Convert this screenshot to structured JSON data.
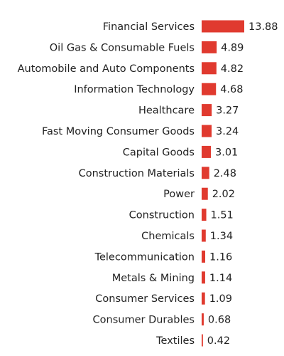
{
  "colors": {
    "bar": "#e03a2f",
    "text": "#222222",
    "background": "#ffffff"
  },
  "chart_data": {
    "type": "bar",
    "orientation": "horizontal",
    "title": "",
    "xlabel": "",
    "ylabel": "",
    "grid": false,
    "legend": "none",
    "xlim": [
      0,
      13.88
    ],
    "categories": [
      "Financial Services",
      "Oil Gas & Consumable Fuels",
      "Automobile and Auto Components",
      "Information Technology",
      "Healthcare",
      "Fast Moving Consumer Goods",
      "Capital Goods",
      "Construction Materials",
      "Power",
      "Construction",
      "Chemicals",
      "Telecommunication",
      "Metals & Mining",
      "Consumer Services",
      "Consumer Durables",
      "Textiles"
    ],
    "values": [
      13.88,
      4.89,
      4.82,
      4.68,
      3.27,
      3.24,
      3.01,
      2.48,
      2.02,
      1.51,
      1.34,
      1.16,
      1.14,
      1.09,
      0.68,
      0.42
    ],
    "value_labels": [
      "13.88",
      "4.89",
      "4.82",
      "4.68",
      "3.27",
      "3.24",
      "3.01",
      "2.48",
      "2.02",
      "1.51",
      "1.34",
      "1.16",
      "1.14",
      "1.09",
      "0.68",
      "0.42"
    ]
  }
}
